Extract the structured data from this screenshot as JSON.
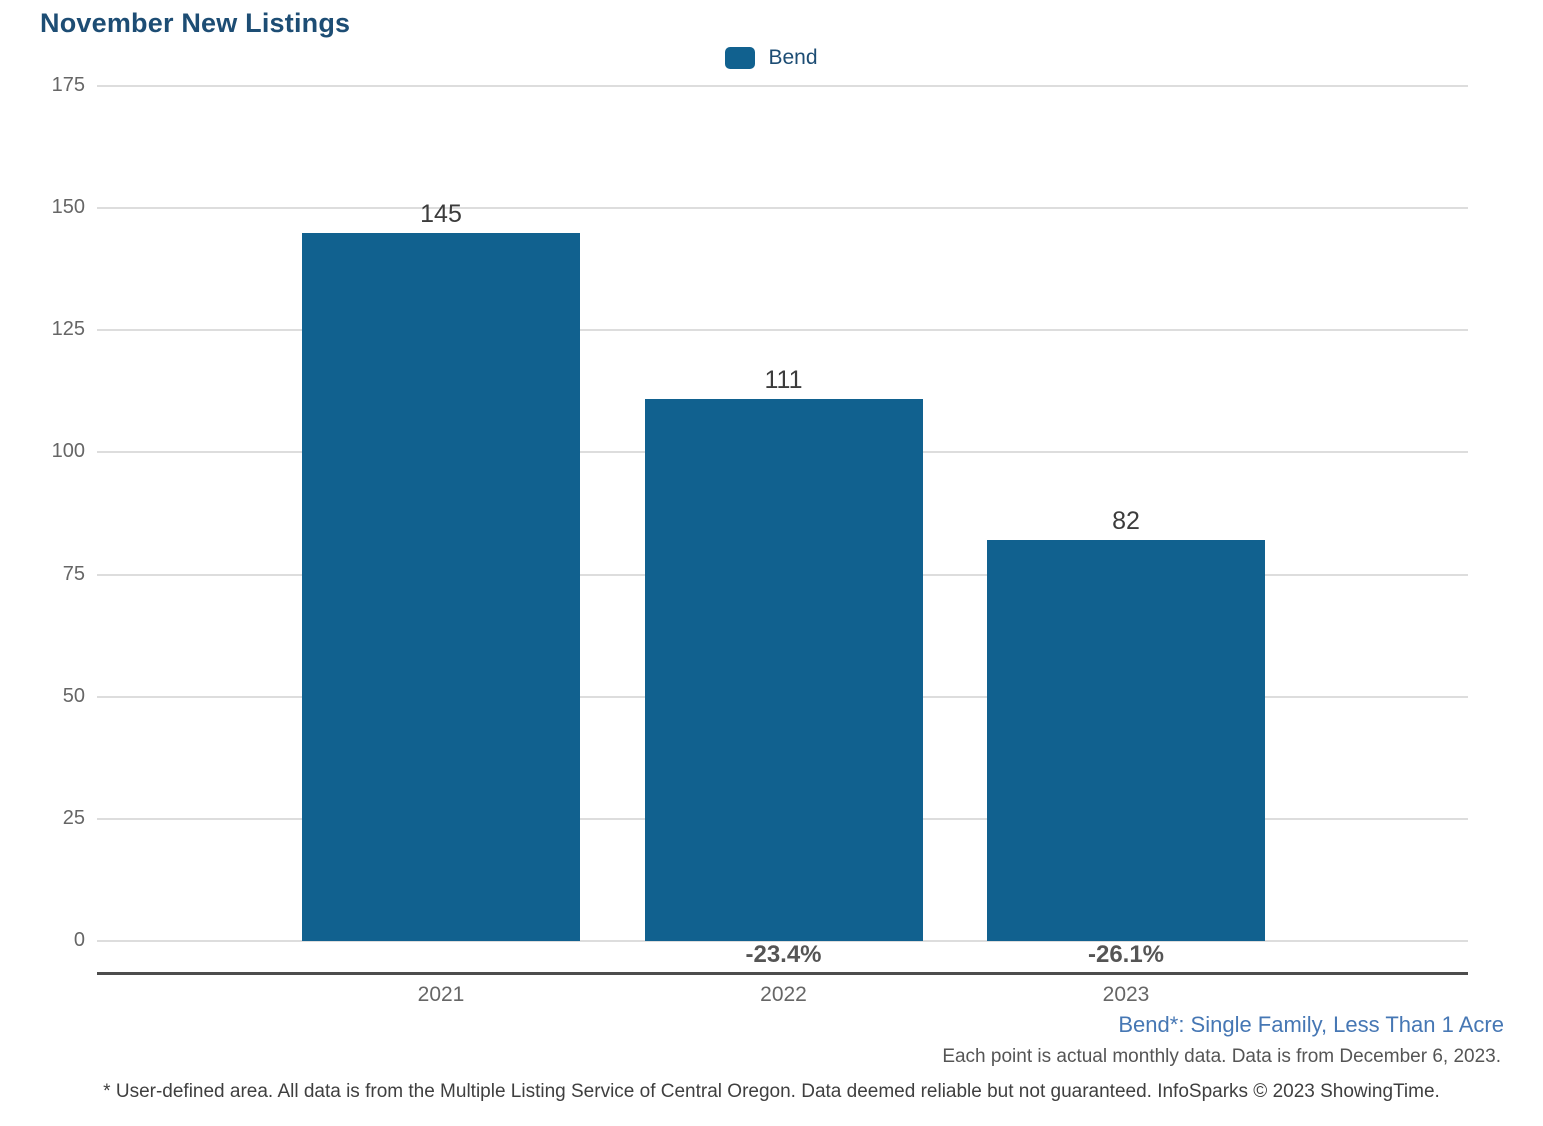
{
  "title": "November New Listings",
  "legend": {
    "label": "Bend",
    "swatch_color": "#11618f"
  },
  "chart_data": {
    "type": "bar",
    "title": "November New Listings",
    "categories": [
      "2021",
      "2022",
      "2023"
    ],
    "series": [
      {
        "name": "Bend",
        "values": [
          145,
          111,
          82
        ]
      }
    ],
    "value_labels": [
      "145",
      "111",
      "82"
    ],
    "pct_change_labels": [
      "",
      "-23.4%",
      "-26.1%"
    ],
    "y_ticks": [
      0,
      25,
      50,
      75,
      100,
      125,
      150,
      175
    ],
    "ylim": [
      0,
      175
    ],
    "xlabel": "",
    "ylabel": "",
    "grid": true,
    "legend_position": "top-center",
    "bar_color": "#11618f"
  },
  "footnotes": {
    "area_definition": "Bend*: Single Family, Less Than 1 Acre",
    "data_note": "Each point is actual monthly data. Data is from December 6, 2023.",
    "disclaimer": "* User-defined area. All data is from the Multiple Listing Service of Central Oregon. Data deemed reliable but not guaranteed. InfoSparks © 2023 ShowingTime."
  },
  "colors": {
    "bar": "#11618f",
    "title_text": "#1d4d74",
    "gridline": "#dddddd",
    "axis_line": "#4d4d4d",
    "tick_text": "#666666",
    "value_text": "#3c3c3c",
    "pct_text": "#555555",
    "area_footnote_text": "#4677b4"
  }
}
